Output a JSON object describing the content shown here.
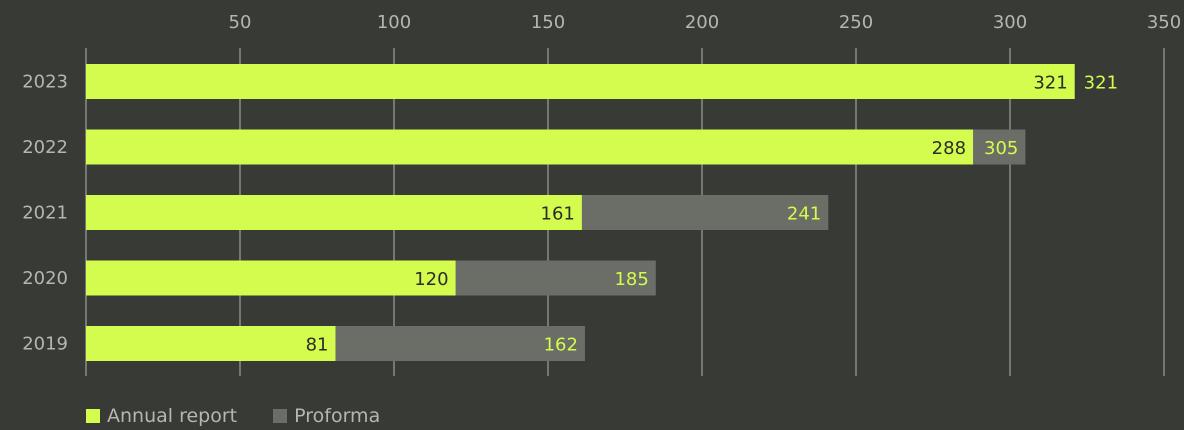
{
  "colors": {
    "background": "#383b35",
    "annual": "#d4fc4e",
    "proforma": "#6b6d67",
    "grid": "#8a8c86",
    "axis_text": "#b4b6b0",
    "label_dark": "#2b2d28"
  },
  "legend": {
    "annual_label": "Annual report",
    "proforma_label": "Proforma"
  },
  "chart_data": {
    "type": "bar",
    "orientation": "horizontal",
    "categories": [
      "2023",
      "2022",
      "2021",
      "2020",
      "2019"
    ],
    "series": [
      {
        "name": "Annual report",
        "values": [
          321,
          288,
          161,
          120,
          81
        ]
      },
      {
        "name": "Proforma",
        "values": [
          321,
          305,
          241,
          185,
          162
        ]
      }
    ],
    "xticks": [
      50,
      100,
      150,
      200,
      250,
      300,
      350
    ],
    "xlim": [
      0,
      355
    ],
    "grid": true,
    "xaxis_position": "top",
    "legend_position": "bottom-left",
    "title": "",
    "xlabel": "",
    "ylabel": ""
  }
}
